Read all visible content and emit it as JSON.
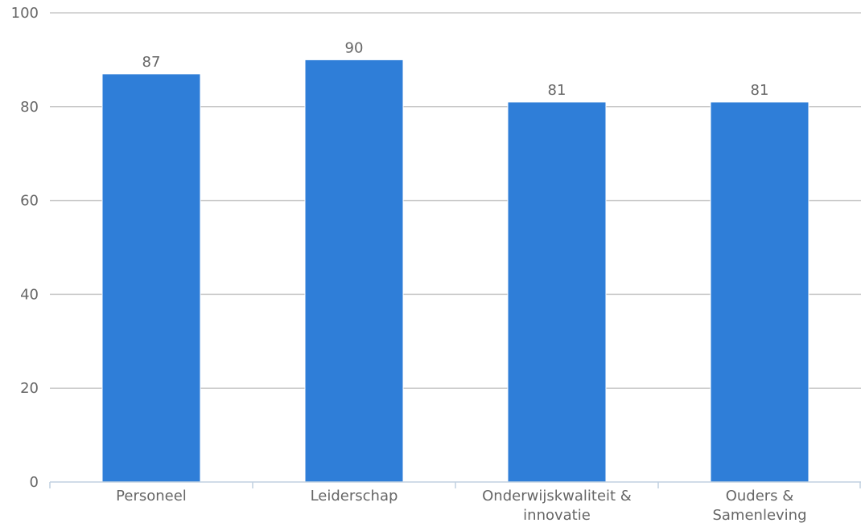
{
  "chart_data": {
    "type": "bar",
    "categories": [
      "Personeel",
      "Leiderschap",
      "Onderwijskwaliteit & innovatie",
      "Ouders & Samenleving"
    ],
    "category_label_lines": [
      [
        "Personeel"
      ],
      [
        "Leiderschap"
      ],
      [
        "Onderwijskwaliteit &",
        "innovatie"
      ],
      [
        "Ouders &",
        "Samenleving"
      ]
    ],
    "values": [
      87,
      90,
      81,
      81
    ],
    "data_labels": [
      "87",
      "90",
      "81",
      "81"
    ],
    "ylim": [
      0,
      100
    ],
    "yticks": [
      0,
      20,
      40,
      60,
      80,
      100
    ],
    "ytick_labels": [
      "0",
      "20",
      "40",
      "60",
      "80",
      "100"
    ],
    "title": "",
    "xlabel": "",
    "ylabel": "",
    "grid": true,
    "legend": "none",
    "colors": {
      "bar": "#2f7ed8",
      "grid": "#c8c8c8",
      "axis": "#c0d0e0",
      "text": "#666666"
    }
  }
}
